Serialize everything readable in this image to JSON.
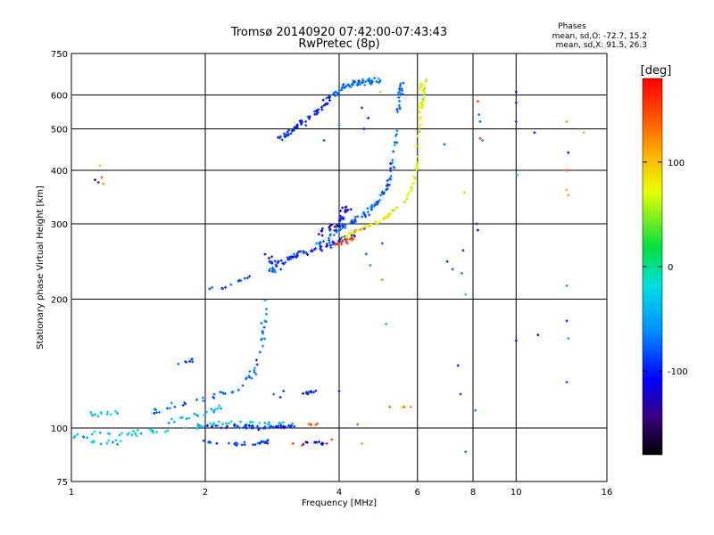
{
  "chart_data": {
    "type": "scatter",
    "title": "Tromsø 20140920 07:42:00-07:43:43",
    "subtitle": "RwPretec (8p)",
    "xlabel": "Frequency [MHz]",
    "ylabel": "Stationary phase Virtual Height [km]",
    "x_scale": "log",
    "y_scale": "log",
    "xlim": [
      1,
      16
    ],
    "ylim": [
      75,
      750
    ],
    "x_ticks": [
      1,
      2,
      4,
      6,
      8,
      10,
      16
    ],
    "x_tick_labels": [
      "1",
      "2",
      "4",
      "6",
      "8",
      "10",
      "16"
    ],
    "y_ticks": [
      75,
      100,
      200,
      300,
      400,
      500,
      600,
      750
    ],
    "y_tick_labels": [
      "75",
      "100",
      "200",
      "300",
      "400",
      "500",
      "600",
      "750"
    ],
    "grid": true,
    "stats": {
      "title": "Phases",
      "line_o": "mean, sd,O: -72.7, 15.2",
      "line_x": "mean, sd,X:  91.5, 26.3"
    },
    "colorbar": {
      "label": "[deg]",
      "range": [
        -180,
        180
      ],
      "ticks": [
        100,
        0,
        -100
      ],
      "tick_labels": [
        "100",
        "0",
        "-100"
      ]
    },
    "clusters": [
      {
        "kind": "curve",
        "pts": [
          [
            1.0,
            97
          ],
          [
            1.07,
            95
          ],
          [
            1.15,
            97
          ],
          [
            1.25,
            96
          ],
          [
            1.35,
            97
          ],
          [
            1.45,
            98
          ],
          [
            1.55,
            98
          ],
          [
            1.7,
            99
          ],
          [
            1.9,
            100
          ],
          [
            2.1,
            102
          ],
          [
            2.4,
            103
          ],
          [
            2.7,
            102
          ],
          [
            3.0,
            102
          ],
          [
            3.2,
            101
          ]
        ],
        "phase": -30,
        "n": 70,
        "sx": 0.012,
        "sy": 0.01
      },
      {
        "kind": "curve",
        "pts": [
          [
            1.1,
            108
          ],
          [
            1.2,
            108
          ],
          [
            1.3,
            109
          ]
        ],
        "phase": -30,
        "n": 12,
        "sx": 0.01,
        "sy": 0.008
      },
      {
        "kind": "curve",
        "pts": [
          [
            1.1,
            93
          ],
          [
            1.2,
            92
          ],
          [
            1.3,
            93
          ]
        ],
        "phase": -40,
        "n": 10,
        "sx": 0.01,
        "sy": 0.008
      },
      {
        "kind": "curve",
        "pts": [
          [
            1.5,
            108
          ],
          [
            1.7,
            112
          ],
          [
            1.9,
            116
          ],
          [
            2.1,
            118
          ],
          [
            2.3,
            123
          ],
          [
            2.5,
            130
          ],
          [
            2.6,
            138
          ],
          [
            2.65,
            150
          ],
          [
            2.7,
            170
          ],
          [
            2.72,
            200
          ]
        ],
        "phase": -70,
        "n": 55,
        "sx": 0.012,
        "sy": 0.012
      },
      {
        "kind": "curve",
        "pts": [
          [
            1.6,
            103
          ],
          [
            1.8,
            106
          ],
          [
            2.0,
            108
          ],
          [
            2.2,
            112
          ]
        ],
        "phase": -50,
        "n": 20,
        "sx": 0.012,
        "sy": 0.01
      },
      {
        "kind": "curve",
        "pts": [
          [
            1.7,
            140
          ],
          [
            1.8,
            142
          ],
          [
            1.9,
            145
          ]
        ],
        "phase": -80,
        "n": 8,
        "sx": 0.008,
        "sy": 0.008
      },
      {
        "kind": "curve",
        "pts": [
          [
            2.0,
            101
          ],
          [
            2.3,
            101
          ],
          [
            2.6,
            100
          ],
          [
            2.9,
            101
          ],
          [
            3.2,
            101
          ]
        ],
        "phase": -95,
        "n": 50,
        "sx": 0.01,
        "sy": 0.008
      },
      {
        "kind": "curve",
        "pts": [
          [
            2.0,
            93
          ],
          [
            2.3,
            92
          ],
          [
            2.6,
            92
          ],
          [
            2.8,
            93
          ]
        ],
        "phase": -90,
        "n": 30,
        "sx": 0.01,
        "sy": 0.008
      },
      {
        "kind": "curve",
        "pts": [
          [
            2.0,
            212
          ],
          [
            2.2,
            212
          ],
          [
            2.4,
            220
          ],
          [
            2.55,
            228
          ]
        ],
        "phase": -85,
        "n": 12,
        "sx": 0.008,
        "sy": 0.008
      },
      {
        "kind": "curve",
        "pts": [
          [
            2.8,
            235
          ],
          [
            2.9,
            232
          ],
          [
            3.1,
            245
          ],
          [
            3.4,
            260
          ],
          [
            3.7,
            275
          ],
          [
            4.0,
            292
          ],
          [
            4.3,
            305
          ],
          [
            4.6,
            318
          ],
          [
            4.9,
            338
          ],
          [
            5.15,
            370
          ],
          [
            5.3,
            420
          ],
          [
            5.4,
            500
          ],
          [
            5.5,
            600
          ],
          [
            5.55,
            650
          ]
        ],
        "phase": -75,
        "n": 130,
        "sx": 0.01,
        "sy": 0.01
      },
      {
        "kind": "curve",
        "pts": [
          [
            2.75,
            250
          ],
          [
            2.9,
            240
          ],
          [
            3.2,
            255
          ],
          [
            3.6,
            262
          ],
          [
            4.0,
            275
          ],
          [
            4.3,
            282
          ],
          [
            4.5,
            295
          ]
        ],
        "phase": -100,
        "n": 70,
        "sx": 0.012,
        "sy": 0.012
      },
      {
        "kind": "curve",
        "pts": [
          [
            3.5,
            280
          ],
          [
            3.8,
            292
          ],
          [
            4.0,
            300
          ],
          [
            4.1,
            320
          ],
          [
            4.2,
            330
          ]
        ],
        "phase": -110,
        "n": 35,
        "sx": 0.012,
        "sy": 0.012
      },
      {
        "kind": "curve",
        "pts": [
          [
            2.9,
            470
          ],
          [
            3.1,
            490
          ],
          [
            3.3,
            515
          ],
          [
            3.5,
            540
          ],
          [
            3.7,
            570
          ],
          [
            3.85,
            600
          ]
        ],
        "phase": -100,
        "n": 60,
        "sx": 0.01,
        "sy": 0.012
      },
      {
        "kind": "curve",
        "pts": [
          [
            3.85,
            600
          ],
          [
            4.1,
            625
          ],
          [
            4.4,
            640
          ],
          [
            4.7,
            645
          ],
          [
            5.0,
            650
          ]
        ],
        "phase": -70,
        "n": 60,
        "sx": 0.012,
        "sy": 0.012
      },
      {
        "kind": "curve",
        "pts": [
          [
            4.0,
            275
          ],
          [
            4.4,
            290
          ],
          [
            4.8,
            300
          ],
          [
            5.2,
            315
          ],
          [
            5.6,
            340
          ],
          [
            5.9,
            370
          ],
          [
            6.0,
            420
          ],
          [
            6.05,
            500
          ],
          [
            6.1,
            600
          ],
          [
            6.15,
            650
          ]
        ],
        "phase": 80,
        "n": 85,
        "sx": 0.006,
        "sy": 0.006
      },
      {
        "kind": "curve",
        "pts": [
          [
            3.9,
            268
          ],
          [
            4.1,
            272
          ],
          [
            4.3,
            278
          ]
        ],
        "phase": 150,
        "n": 14,
        "sx": 0.008,
        "sy": 0.008
      },
      {
        "kind": "curve",
        "pts": [
          [
            6.15,
            560
          ],
          [
            6.2,
            600
          ],
          [
            6.25,
            650
          ]
        ],
        "phase": 60,
        "n": 25,
        "sx": 0.004,
        "sy": 0.006
      },
      {
        "kind": "curve",
        "pts": [
          [
            3.3,
            120
          ],
          [
            3.45,
            121
          ],
          [
            3.6,
            122
          ]
        ],
        "phase": -100,
        "n": 10,
        "sx": 0.006,
        "sy": 0.006
      },
      {
        "kind": "curve",
        "pts": [
          [
            3.3,
            92
          ],
          [
            3.5,
            93
          ],
          [
            3.7,
            92
          ]
        ],
        "phase": -110,
        "n": 12,
        "sx": 0.006,
        "sy": 0.006
      },
      {
        "kind": "curve",
        "pts": [
          [
            3.4,
            102
          ],
          [
            3.6,
            102
          ]
        ],
        "phase": 140,
        "n": 6,
        "sx": 0.006,
        "sy": 0.005
      }
    ],
    "points": [
      [
        1.13,
        380,
        -110
      ],
      [
        1.15,
        375,
        -90
      ],
      [
        1.18,
        372,
        120
      ],
      [
        1.16,
        410,
        100
      ],
      [
        1.17,
        385,
        140
      ],
      [
        3.15,
        92,
        155
      ],
      [
        3.3,
        91,
        145
      ],
      [
        3.75,
        92,
        170
      ],
      [
        3.85,
        94,
        150
      ],
      [
        4.5,
        92,
        40
      ],
      [
        4.4,
        102,
        140
      ],
      [
        5.2,
        112,
        140
      ],
      [
        5.6,
        112,
        150
      ],
      [
        5.8,
        112,
        120
      ],
      [
        5.55,
        112,
        100
      ],
      [
        2.85,
        120,
        -70
      ],
      [
        2.95,
        118,
        -100
      ],
      [
        3.0,
        122,
        -90
      ],
      [
        4.0,
        122,
        -100
      ],
      [
        4.0,
        510,
        -70
      ],
      [
        4.5,
        560,
        -90
      ],
      [
        4.55,
        500,
        -110
      ],
      [
        4.65,
        530,
        -100
      ],
      [
        5.1,
        175,
        -40
      ],
      [
        5.0,
        222,
        120
      ],
      [
        4.6,
        255,
        -80
      ],
      [
        4.7,
        240,
        -60
      ],
      [
        6.9,
        460,
        -80
      ],
      [
        7.0,
        245,
        -100
      ],
      [
        7.2,
        235,
        -80
      ],
      [
        7.4,
        140,
        -100
      ],
      [
        7.5,
        120,
        -90
      ],
      [
        7.55,
        230,
        -60
      ],
      [
        7.6,
        260,
        -100
      ],
      [
        7.65,
        355,
        100
      ],
      [
        7.7,
        205,
        -10
      ],
      [
        8.2,
        580,
        150
      ],
      [
        8.25,
        540,
        -70
      ],
      [
        8.3,
        520,
        -80
      ],
      [
        8.3,
        475,
        160
      ],
      [
        8.4,
        470,
        -60
      ],
      [
        8.15,
        300,
        -110
      ],
      [
        8.2,
        290,
        -120
      ],
      [
        8.1,
        110,
        -60
      ],
      [
        7.7,
        88,
        -70
      ],
      [
        10.0,
        610,
        -110
      ],
      [
        10.0,
        575,
        -100
      ],
      [
        10.0,
        520,
        -90
      ],
      [
        10.05,
        390,
        -10
      ],
      [
        10.0,
        160,
        -110
      ],
      [
        11.0,
        490,
        -100
      ],
      [
        11.2,
        165,
        -120
      ],
      [
        13.0,
        520,
        120
      ],
      [
        13.1,
        440,
        -110
      ],
      [
        13.0,
        400,
        150
      ],
      [
        13.0,
        360,
        110
      ],
      [
        13.1,
        350,
        120
      ],
      [
        13.0,
        215,
        -60
      ],
      [
        13.0,
        178,
        -100
      ],
      [
        13.1,
        162,
        -40
      ],
      [
        13.0,
        128,
        -80
      ],
      [
        14.2,
        490,
        100
      ],
      [
        3.9,
        600,
        -90
      ],
      [
        4.95,
        610,
        100
      ],
      [
        3.7,
        470,
        -80
      ],
      [
        5.0,
        270,
        -80
      ]
    ]
  }
}
